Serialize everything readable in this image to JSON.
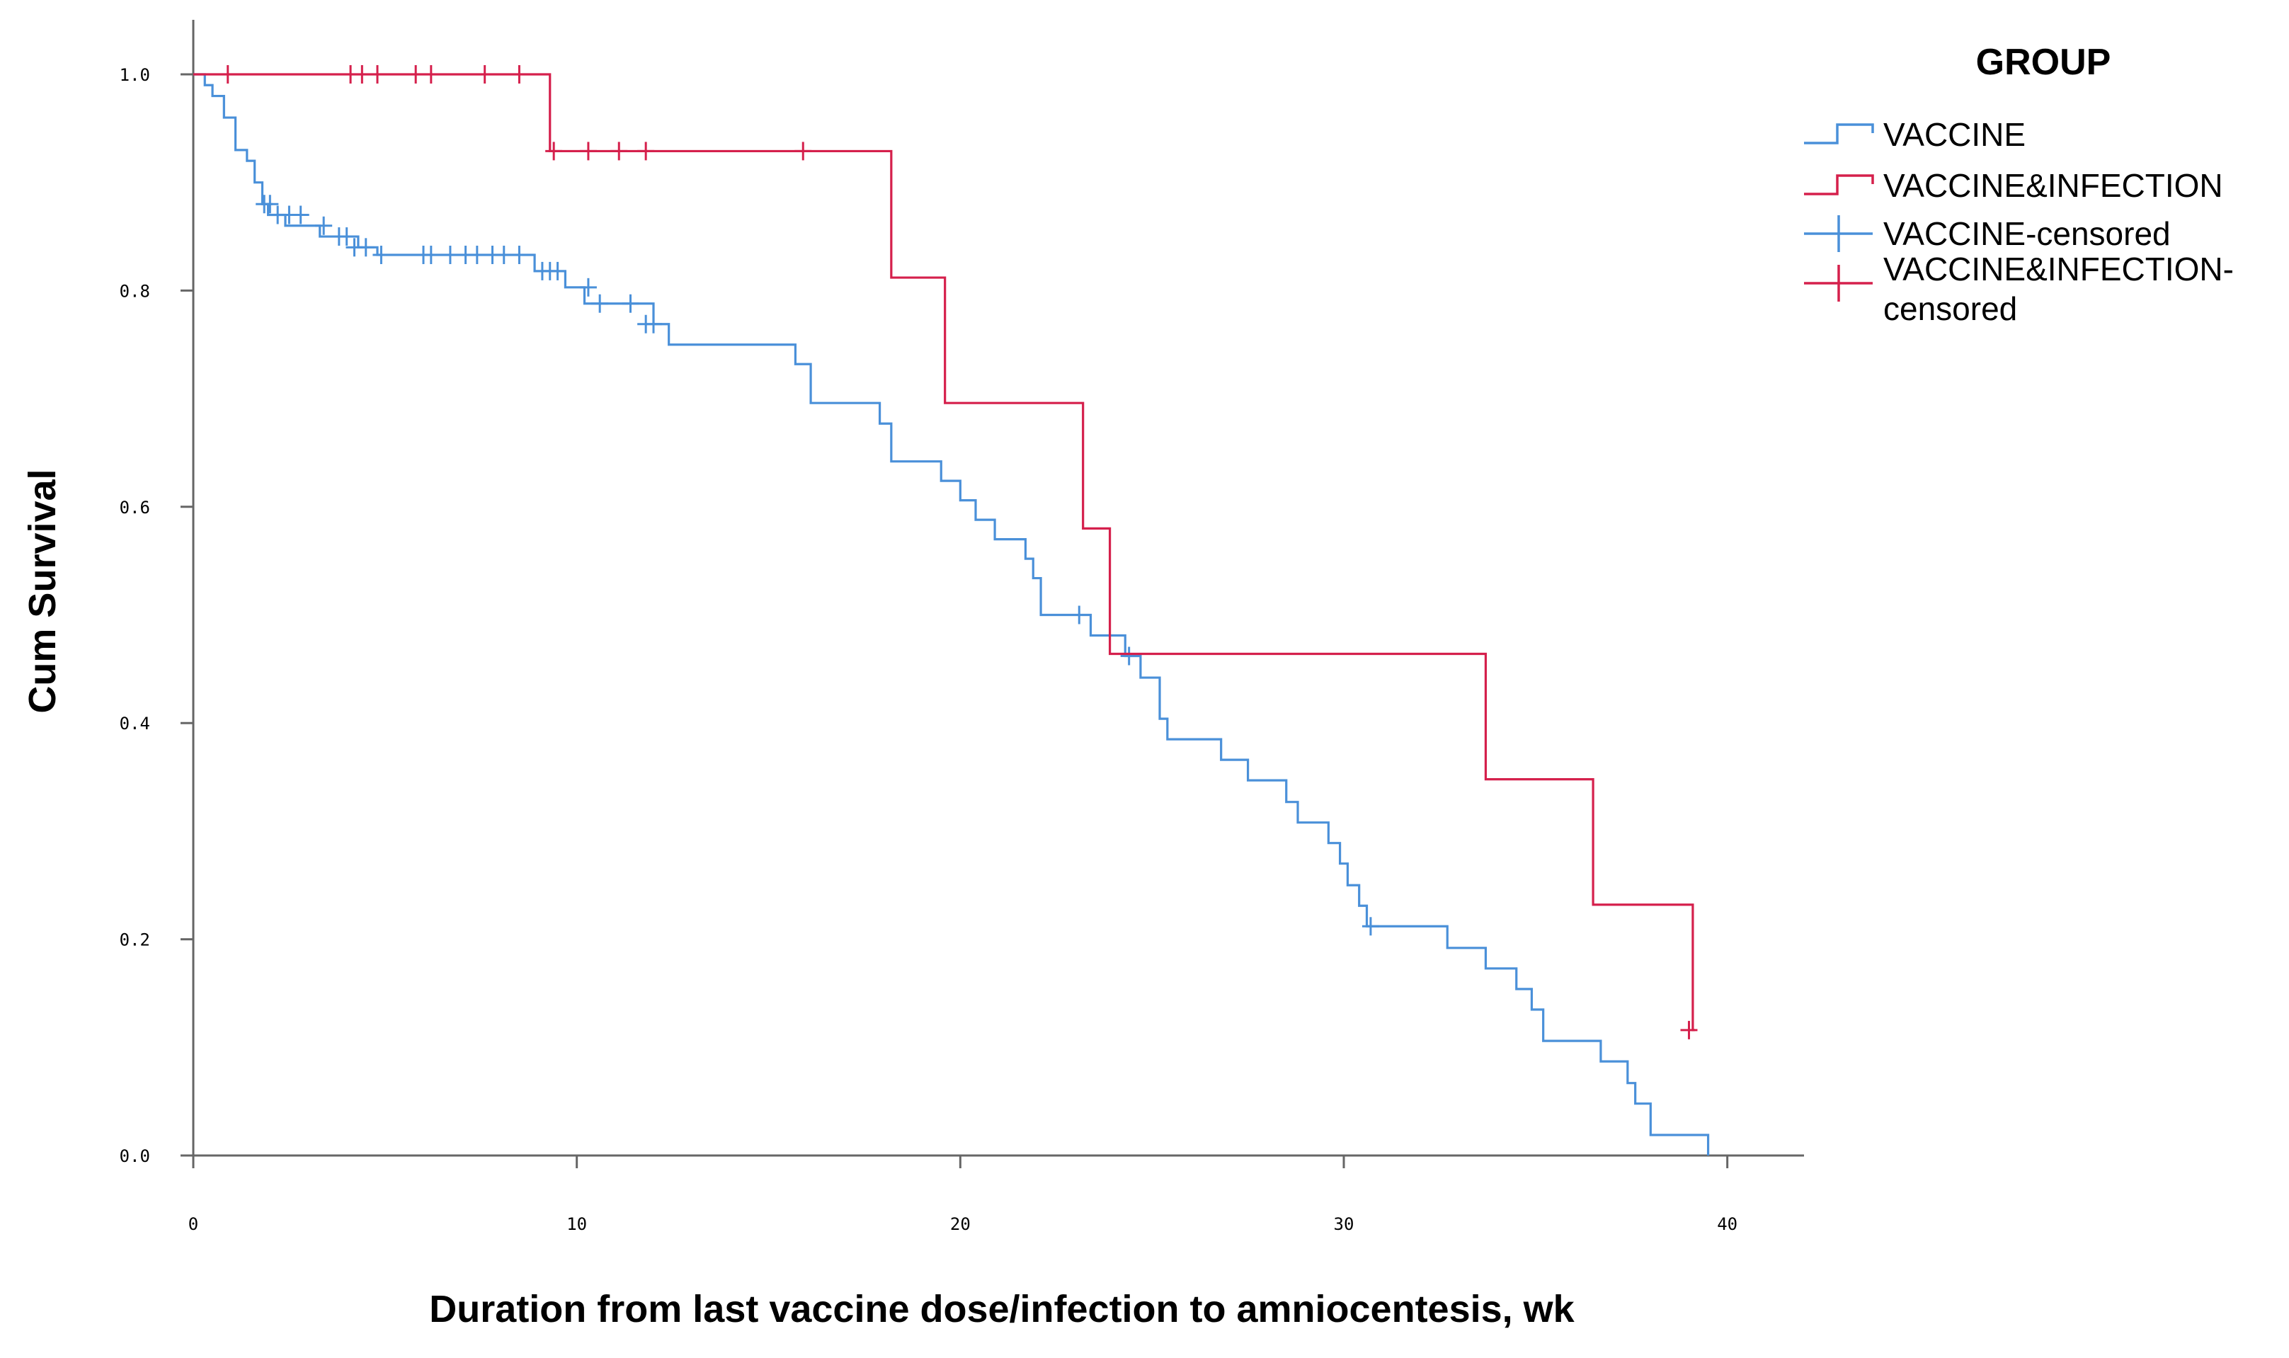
{
  "chart_data": {
    "type": "line",
    "subtype": "kaplan-meier-step",
    "xlabel": "Duration from last vaccine dose/infection to amniocentesis, wk",
    "ylabel": "Cum Survival",
    "xlim": [
      0,
      42
    ],
    "ylim": [
      0,
      1.0
    ],
    "x_ticks": [
      "0",
      "10",
      "20",
      "30",
      "40"
    ],
    "y_ticks": [
      "0.0",
      "0.2",
      "0.4",
      "0.6",
      "0.8",
      "1.0"
    ],
    "legend": {
      "title": "GROUP",
      "position": "top-right",
      "entries": [
        {
          "label": "VACCINE",
          "kind": "line",
          "series": 0
        },
        {
          "label": "VACCINE&INFECTION",
          "kind": "line",
          "series": 1
        },
        {
          "label": "VACCINE-censored",
          "kind": "censor",
          "series": 0
        },
        {
          "label": "VACCINE&INFECTION-",
          "label2": "censored",
          "kind": "censor",
          "series": 1
        }
      ]
    },
    "series": [
      {
        "name": "VACCINE",
        "color": "#4a90d9",
        "steps": [
          [
            0,
            1.0
          ],
          [
            0.3,
            0.99
          ],
          [
            0.5,
            0.98
          ],
          [
            0.8,
            0.96
          ],
          [
            1.1,
            0.93
          ],
          [
            1.4,
            0.92
          ],
          [
            1.6,
            0.9
          ],
          [
            1.8,
            0.88
          ],
          [
            1.95,
            0.87
          ],
          [
            2.4,
            0.86
          ],
          [
            3.3,
            0.85
          ],
          [
            4.3,
            0.84
          ],
          [
            4.8,
            0.833
          ],
          [
            8.9,
            0.818
          ],
          [
            9.7,
            0.803
          ],
          [
            10.2,
            0.788
          ],
          [
            12.0,
            0.769
          ],
          [
            12.4,
            0.75
          ],
          [
            15.7,
            0.732
          ],
          [
            16.1,
            0.696
          ],
          [
            17.9,
            0.677
          ],
          [
            18.2,
            0.642
          ],
          [
            19.5,
            0.624
          ],
          [
            20.0,
            0.606
          ],
          [
            20.4,
            0.588
          ],
          [
            20.9,
            0.57
          ],
          [
            21.7,
            0.552
          ],
          [
            21.9,
            0.534
          ],
          [
            22.1,
            0.5
          ],
          [
            23.4,
            0.481
          ],
          [
            24.3,
            0.462
          ],
          [
            24.7,
            0.442
          ],
          [
            25.2,
            0.404
          ],
          [
            25.4,
            0.385
          ],
          [
            26.8,
            0.366
          ],
          [
            27.5,
            0.347
          ],
          [
            28.5,
            0.327
          ],
          [
            28.8,
            0.308
          ],
          [
            29.6,
            0.289
          ],
          [
            29.9,
            0.27
          ],
          [
            30.1,
            0.25
          ],
          [
            30.4,
            0.231
          ],
          [
            30.6,
            0.212
          ],
          [
            32.7,
            0.192
          ],
          [
            33.7,
            0.173
          ],
          [
            34.5,
            0.154
          ],
          [
            34.9,
            0.135
          ],
          [
            35.2,
            0.106
          ],
          [
            36.7,
            0.087
          ],
          [
            37.4,
            0.067
          ],
          [
            37.6,
            0.048
          ],
          [
            38.0,
            0.019
          ],
          [
            39.5,
            0.0
          ]
        ],
        "censored": [
          [
            1.85,
            0.88
          ],
          [
            2.0,
            0.88
          ],
          [
            2.2,
            0.87
          ],
          [
            2.5,
            0.87
          ],
          [
            2.8,
            0.87
          ],
          [
            3.4,
            0.86
          ],
          [
            3.8,
            0.85
          ],
          [
            4.0,
            0.85
          ],
          [
            4.2,
            0.84
          ],
          [
            4.5,
            0.84
          ],
          [
            4.9,
            0.833
          ],
          [
            6.0,
            0.833
          ],
          [
            6.2,
            0.833
          ],
          [
            6.7,
            0.833
          ],
          [
            7.1,
            0.833
          ],
          [
            7.4,
            0.833
          ],
          [
            7.8,
            0.833
          ],
          [
            8.1,
            0.833
          ],
          [
            8.5,
            0.833
          ],
          [
            9.1,
            0.818
          ],
          [
            9.3,
            0.818
          ],
          [
            9.5,
            0.818
          ],
          [
            10.3,
            0.803
          ],
          [
            10.6,
            0.788
          ],
          [
            11.4,
            0.788
          ],
          [
            11.8,
            0.769
          ],
          [
            12.0,
            0.769
          ],
          [
            23.1,
            0.5
          ],
          [
            24.4,
            0.462
          ],
          [
            30.7,
            0.212
          ]
        ]
      },
      {
        "name": "VACCINE&INFECTION",
        "color": "#d5204c",
        "steps": [
          [
            0,
            1.0
          ],
          [
            9.3,
            0.929
          ],
          [
            18.2,
            0.812
          ],
          [
            19.6,
            0.696
          ],
          [
            23.2,
            0.58
          ],
          [
            23.9,
            0.464
          ],
          [
            33.7,
            0.348
          ],
          [
            36.5,
            0.232
          ],
          [
            39.1,
            0.116
          ]
        ],
        "censored": [
          [
            0.9,
            1.0
          ],
          [
            4.1,
            1.0
          ],
          [
            4.4,
            1.0
          ],
          [
            4.8,
            1.0
          ],
          [
            5.8,
            1.0
          ],
          [
            6.2,
            1.0
          ],
          [
            7.6,
            1.0
          ],
          [
            8.5,
            1.0
          ],
          [
            9.4,
            0.929
          ],
          [
            10.3,
            0.929
          ],
          [
            11.1,
            0.929
          ],
          [
            11.8,
            0.929
          ],
          [
            15.9,
            0.929
          ],
          [
            39.0,
            0.116
          ]
        ]
      }
    ]
  }
}
